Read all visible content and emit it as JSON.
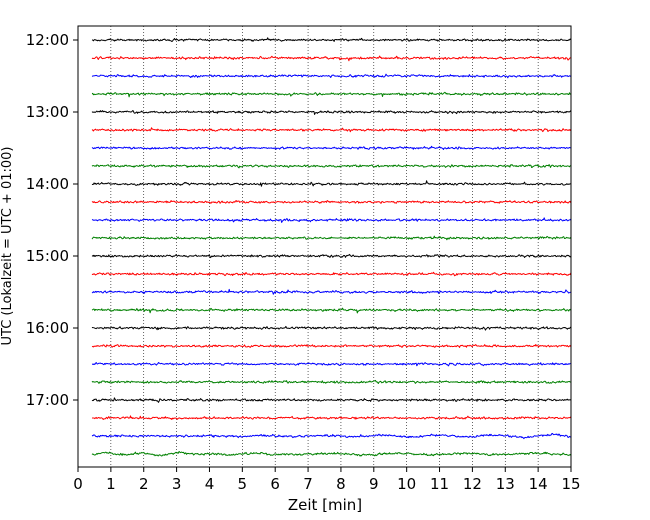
{
  "chart_data": {
    "type": "line",
    "title": "",
    "xlabel": "Zeit  [min]",
    "ylabel": "UTC (Lokalzeit = UTC + 01:00)",
    "xlim": [
      0,
      15
    ],
    "x_ticks": [
      "0",
      "1",
      "2",
      "3",
      "4",
      "5",
      "6",
      "7",
      "8",
      "9",
      "10",
      "11",
      "12",
      "13",
      "14",
      "15"
    ],
    "y_tick_labels": [
      "12:00",
      "13:00",
      "14:00",
      "15:00",
      "16:00",
      "17:00"
    ],
    "grid": "vertical dotted lines at each minute",
    "legend": "none",
    "trace_interval_min": 15,
    "trace_colors": [
      "#000000",
      "#ff0000",
      "#0000ff",
      "#008000"
    ],
    "traces": [
      {
        "start": "12:00",
        "color": "#000000"
      },
      {
        "start": "12:15",
        "color": "#ff0000"
      },
      {
        "start": "12:30",
        "color": "#0000ff"
      },
      {
        "start": "12:45",
        "color": "#008000"
      },
      {
        "start": "13:00",
        "color": "#000000"
      },
      {
        "start": "13:15",
        "color": "#ff0000"
      },
      {
        "start": "13:30",
        "color": "#0000ff"
      },
      {
        "start": "13:45",
        "color": "#008000"
      },
      {
        "start": "14:00",
        "color": "#000000"
      },
      {
        "start": "14:15",
        "color": "#ff0000"
      },
      {
        "start": "14:30",
        "color": "#0000ff"
      },
      {
        "start": "14:45",
        "color": "#008000"
      },
      {
        "start": "15:00",
        "color": "#000000"
      },
      {
        "start": "15:15",
        "color": "#ff0000"
      },
      {
        "start": "15:30",
        "color": "#0000ff"
      },
      {
        "start": "15:45",
        "color": "#008000"
      },
      {
        "start": "16:00",
        "color": "#000000"
      },
      {
        "start": "16:15",
        "color": "#ff0000"
      },
      {
        "start": "16:30",
        "color": "#0000ff"
      },
      {
        "start": "16:45",
        "color": "#008000"
      },
      {
        "start": "17:00",
        "color": "#000000"
      },
      {
        "start": "17:15",
        "color": "#ff0000"
      },
      {
        "start": "17:30",
        "color": "#0000ff"
      },
      {
        "start": "17:45",
        "color": "#008000"
      }
    ]
  }
}
